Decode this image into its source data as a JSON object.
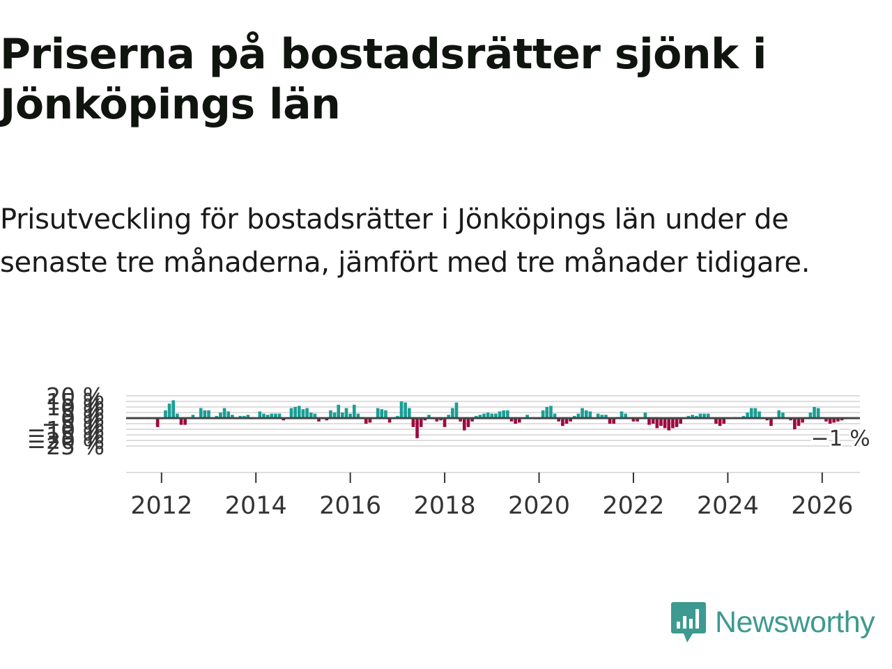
{
  "header": {
    "title": "Priserna på bostadsrätter sjönk i Jönköpings län",
    "subtitle": "Prisutveckling för bostadsrätter i Jönköpings län under de senaste tre månaderna, jämfört med tre månader tidigare."
  },
  "brand": {
    "name": "Newsworthy"
  },
  "colors": {
    "positive": "#1a9e96",
    "negative": "#9c0a3f",
    "zero_line": "#444444",
    "grid": "#dddddd",
    "brand": "#3d9a90"
  },
  "chart_data": {
    "type": "bar",
    "title": "Priserna på bostadsrätter sjönk i Jönköpings län",
    "xlabel": "",
    "ylabel": "",
    "x_ticks": [
      "2012",
      "2014",
      "2016",
      "2018",
      "2020",
      "2022",
      "2024",
      "2026"
    ],
    "y_ticks": [
      {
        "value": 20,
        "label": "20 %"
      },
      {
        "value": 15,
        "label": "15 %"
      },
      {
        "value": 10,
        "label": "10 %"
      },
      {
        "value": 5,
        "label": "5 %"
      },
      {
        "value": 0,
        "label": "0 %"
      },
      {
        "value": -5,
        "label": "−5 %"
      },
      {
        "value": -10,
        "label": "−10 %"
      },
      {
        "value": -15,
        "label": "−15 %"
      },
      {
        "value": -20,
        "label": "−20 %"
      },
      {
        "value": -25,
        "label": "−25 %"
      }
    ],
    "ylim": [
      -25,
      20
    ],
    "xlim": [
      2011.25,
      2026.8
    ],
    "start": "2011-12",
    "frequency": "monthly",
    "values": [
      -8,
      -1,
      7,
      13,
      16,
      4,
      -6,
      -6,
      1,
      3,
      0,
      9,
      7,
      7,
      0,
      2,
      5,
      9,
      6,
      3,
      -1,
      2,
      2,
      3,
      -1,
      0,
      6,
      4,
      3,
      4,
      4,
      4,
      -2,
      0,
      9,
      10,
      11,
      8,
      9,
      5,
      4,
      -3,
      0,
      -2,
      7,
      5,
      12,
      5,
      9,
      4,
      12,
      4,
      1,
      -5,
      -4,
      0,
      9,
      8,
      7,
      -4,
      0,
      2,
      15,
      14,
      9,
      -8,
      -18,
      -8,
      -2,
      3,
      -1,
      -3,
      -2,
      -8,
      3,
      9,
      14,
      -3,
      -11,
      -8,
      -3,
      2,
      3,
      4,
      5,
      4,
      4,
      6,
      7,
      7,
      -3,
      -5,
      -4,
      0,
      3,
      0,
      -1,
      -1,
      7,
      10,
      11,
      4,
      -3,
      -7,
      -5,
      -3,
      2,
      4,
      9,
      7,
      6,
      0,
      4,
      3,
      3,
      -5,
      -5,
      1,
      6,
      4,
      0,
      -3,
      -3,
      0,
      5,
      -6,
      -5,
      -9,
      -7,
      -9,
      -11,
      -9,
      -8,
      -5,
      0,
      2,
      3,
      2,
      4,
      4,
      4,
      0,
      -5,
      -7,
      -5,
      -1,
      0,
      1,
      0,
      2,
      5,
      9,
      9,
      6,
      1,
      -2,
      -7,
      0,
      7,
      5,
      0,
      -2,
      -10,
      -7,
      -4,
      1,
      5,
      10,
      9,
      1,
      -3,
      -5,
      -4,
      -3,
      -2,
      -1
    ],
    "annotation": {
      "label": "−1 %",
      "value": -1,
      "position": "last-bar"
    }
  }
}
